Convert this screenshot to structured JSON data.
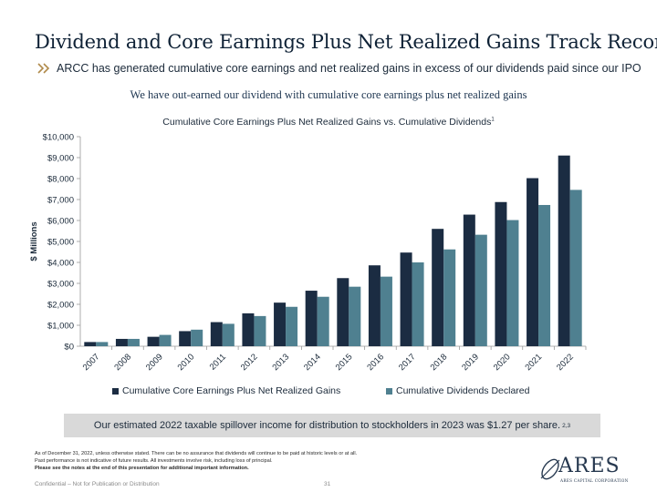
{
  "header": {
    "title": "Dividend and Core Earnings Plus Net Realized Gains Track Record",
    "subtitle": "ARCC has generated cumulative core earnings and net realized gains in excess of our dividends paid since our IPO",
    "tagline": "We have out-earned our dividend with cumulative core earnings plus net realized gains"
  },
  "chart_data": {
    "type": "bar",
    "title": "Cumulative Core Earnings Plus Net Realized Gains vs. Cumulative Dividends",
    "title_footnote": "1",
    "ylabel": "$ Millions",
    "xlabel": "",
    "ylim": [
      0,
      10000
    ],
    "yticks": [
      0,
      1000,
      2000,
      3000,
      4000,
      5000,
      6000,
      7000,
      8000,
      9000,
      10000
    ],
    "ytick_labels": [
      "$0",
      "$1,000",
      "$2,000",
      "$3,000",
      "$4,000",
      "$5,000",
      "$6,000",
      "$7,000",
      "$8,000",
      "$9,000",
      "$10,000"
    ],
    "grid": false,
    "legend_position": "bottom",
    "categories": [
      "2007",
      "2008",
      "2009",
      "2010",
      "2011",
      "2012",
      "2013",
      "2014",
      "2015",
      "2016",
      "2017",
      "2018",
      "2019",
      "2020",
      "2021",
      "2022"
    ],
    "series": [
      {
        "name": "Cumulative Core Earnings Plus Net Realized Gains",
        "color": "#1b2c42",
        "values": [
          200,
          350,
          450,
          720,
          1150,
          1570,
          2080,
          2650,
          3250,
          3860,
          4470,
          5600,
          6280,
          6880,
          8020,
          9100
        ]
      },
      {
        "name": "Cumulative Dividends Declared",
        "color": "#4f8090",
        "values": [
          200,
          350,
          540,
          790,
          1070,
          1440,
          1880,
          2360,
          2840,
          3320,
          4000,
          4620,
          5320,
          6020,
          6740,
          7460
        ]
      }
    ]
  },
  "callout": {
    "text": "Our estimated 2022 taxable spillover income for distribution to stockholders in 2023 was $1.27 per share.",
    "footnote": "2,3"
  },
  "notes": {
    "line1": "As of December 31, 2022, unless otherwise stated. There can be no assurance that dividends will continue to be paid at historic levels or at all.",
    "line2": "Past performance is not indicative of future results. All investments involve risk, including loss of principal.",
    "line3": "Please see the notes at the end of this presentation for additional important information."
  },
  "footer": {
    "confidential": "Confidential – Not for Publication or Distribution",
    "page": "31"
  },
  "logo": {
    "word": "ARES",
    "tagline": "ARES CAPITAL CORPORATION"
  }
}
